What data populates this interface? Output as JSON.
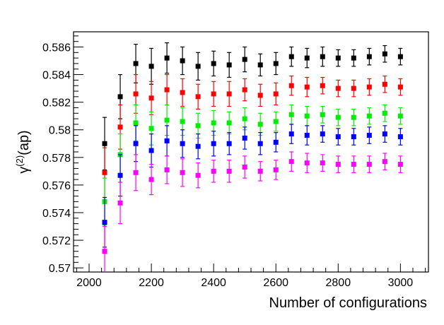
{
  "chart_data": {
    "type": "scatter",
    "xlabel": "Number of configurations",
    "ylabel_main": "γ",
    "ylabel_sup": "(2)",
    "ylabel_rest": "(ap)",
    "xlim": [
      1950,
      3090
    ],
    "ylim": [
      0.5697,
      0.5871
    ],
    "x_ticks": [
      2000,
      2200,
      2400,
      2600,
      2800,
      3000
    ],
    "x_tick_labels": [
      "2000",
      "2200",
      "2400",
      "2600",
      "2800",
      "3000"
    ],
    "y_ticks": [
      0.57,
      0.572,
      0.574,
      0.576,
      0.578,
      0.58,
      0.582,
      0.584,
      0.586
    ],
    "y_tick_labels": [
      "0.57",
      "0.572",
      "0.574",
      "0.576",
      "0.578",
      "0.58",
      "0.582",
      "0.584",
      "0.586"
    ],
    "grid": false,
    "x": [
      2050,
      2100,
      2150,
      2200,
      2250,
      2300,
      2350,
      2400,
      2450,
      2500,
      2550,
      2600,
      2650,
      2700,
      2750,
      2800,
      2850,
      2900,
      2950,
      3000
    ],
    "series": [
      {
        "color": "#000000",
        "y": [
          0.579,
          0.5824,
          0.5848,
          0.5846,
          0.5852,
          0.585,
          0.5846,
          0.5848,
          0.5847,
          0.5851,
          0.5847,
          0.5848,
          0.5853,
          0.5852,
          0.5853,
          0.5852,
          0.5852,
          0.5853,
          0.5855,
          0.5853
        ],
        "err": [
          0.0019,
          0.0016,
          0.0014,
          0.0013,
          0.0011,
          0.001,
          0.001,
          0.0009,
          0.0009,
          0.0009,
          0.0008,
          0.0008,
          0.0007,
          0.0007,
          0.0007,
          0.0006,
          0.0006,
          0.0006,
          0.0006,
          0.0006
        ]
      },
      {
        "color": "#ff0000",
        "y": [
          0.5769,
          0.5802,
          0.5826,
          0.5823,
          0.5829,
          0.5827,
          0.5824,
          0.5826,
          0.5826,
          0.5829,
          0.5825,
          0.5826,
          0.5832,
          0.5831,
          0.5832,
          0.583,
          0.583,
          0.5831,
          0.5833,
          0.5831
        ],
        "err": [
          0.0018,
          0.0016,
          0.0014,
          0.0012,
          0.0011,
          0.001,
          0.0009,
          0.0009,
          0.0009,
          0.0008,
          0.0008,
          0.0008,
          0.0007,
          0.0007,
          0.0006,
          0.0006,
          0.0006,
          0.0006,
          0.0006,
          0.0006
        ]
      },
      {
        "color": "#00ee00",
        "y": [
          0.5748,
          0.5782,
          0.5805,
          0.5801,
          0.5807,
          0.5806,
          0.5803,
          0.5805,
          0.5805,
          0.5808,
          0.5804,
          0.5806,
          0.5811,
          0.581,
          0.5811,
          0.5809,
          0.5809,
          0.581,
          0.5812,
          0.581
        ],
        "err": [
          0.0017,
          0.0015,
          0.0013,
          0.0012,
          0.0011,
          0.001,
          0.0009,
          0.0009,
          0.0008,
          0.0008,
          0.0008,
          0.0007,
          0.0007,
          0.0007,
          0.0006,
          0.0006,
          0.0006,
          0.0006,
          0.0006,
          0.0006
        ]
      },
      {
        "color": "#0000ff",
        "y": [
          0.5733,
          0.5767,
          0.579,
          0.5785,
          0.5792,
          0.579,
          0.5788,
          0.579,
          0.579,
          0.5794,
          0.579,
          0.5791,
          0.5797,
          0.5796,
          0.5797,
          0.5795,
          0.5795,
          0.5796,
          0.5797,
          0.5795
        ],
        "err": [
          0.0018,
          0.0015,
          0.0013,
          0.0012,
          0.0011,
          0.001,
          0.0009,
          0.0009,
          0.0008,
          0.0008,
          0.0008,
          0.0007,
          0.0007,
          0.0007,
          0.0006,
          0.0006,
          0.0006,
          0.0006,
          0.0006,
          0.0006
        ]
      },
      {
        "color": "#ff00ff",
        "y": [
          0.5712,
          0.5747,
          0.5769,
          0.5764,
          0.5771,
          0.5769,
          0.5767,
          0.577,
          0.577,
          0.5773,
          0.577,
          0.5771,
          0.5777,
          0.5776,
          0.5776,
          0.5775,
          0.5775,
          0.5775,
          0.5777,
          0.5775
        ],
        "err": [
          0.0018,
          0.0015,
          0.0013,
          0.0011,
          0.001,
          0.001,
          0.0009,
          0.0008,
          0.0008,
          0.0008,
          0.0007,
          0.0007,
          0.0007,
          0.0007,
          0.0006,
          0.0006,
          0.0006,
          0.0006,
          0.0006,
          0.0006
        ]
      }
    ]
  }
}
